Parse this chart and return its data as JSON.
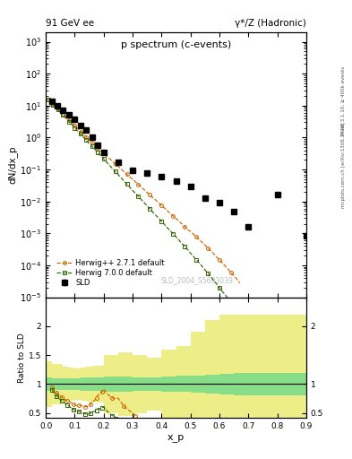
{
  "title_left": "91 GeV ee",
  "title_right": "γ*/Z (Hadronic)",
  "plot_title": "p spectrum (c-events)",
  "watermark": "SLD_2004_S5693039",
  "right_label": "Rivet 3.1.10, ≥ 400k events",
  "right_label2": "mcplots.cern.ch [arXiv:1306.3436]",
  "xlabel": "x_p",
  "ylabel_main": "dN/dx_p",
  "ylabel_ratio": "Ratio to SLD",
  "sld_x": [
    0.02,
    0.04,
    0.06,
    0.08,
    0.1,
    0.12,
    0.14,
    0.16,
    0.18,
    0.2,
    0.25,
    0.3,
    0.35,
    0.4,
    0.45,
    0.5,
    0.55,
    0.6,
    0.65,
    0.7,
    0.8,
    0.9
  ],
  "sld_y": [
    13.5,
    10.0,
    7.2,
    5.1,
    3.65,
    2.45,
    1.7,
    1.0,
    0.58,
    0.35,
    0.165,
    0.096,
    0.076,
    0.059,
    0.042,
    0.03,
    0.013,
    0.009,
    0.0048,
    0.0016,
    0.016,
    0.00085
  ],
  "sld_yerr": [
    1.4,
    1.0,
    0.7,
    0.48,
    0.33,
    0.23,
    0.17,
    0.1,
    0.062,
    0.036,
    0.017,
    0.01,
    0.008,
    0.006,
    0.005,
    0.003,
    0.0014,
    0.001,
    0.0005,
    0.0002,
    0.002,
    0.0001
  ],
  "hw271_x": [
    0.01,
    0.014,
    0.018,
    0.022,
    0.026,
    0.03,
    0.034,
    0.038,
    0.042,
    0.046,
    0.05,
    0.055,
    0.06,
    0.065,
    0.07,
    0.075,
    0.08,
    0.085,
    0.09,
    0.095,
    0.1,
    0.105,
    0.11,
    0.115,
    0.12,
    0.125,
    0.13,
    0.135,
    0.14,
    0.145,
    0.15,
    0.155,
    0.16,
    0.165,
    0.17,
    0.175,
    0.18,
    0.185,
    0.19,
    0.195,
    0.2,
    0.21,
    0.22,
    0.23,
    0.24,
    0.25,
    0.26,
    0.27,
    0.28,
    0.29,
    0.3,
    0.31,
    0.32,
    0.33,
    0.34,
    0.35,
    0.36,
    0.37,
    0.38,
    0.39,
    0.4,
    0.41,
    0.42,
    0.43,
    0.44,
    0.45,
    0.46,
    0.47,
    0.48,
    0.49,
    0.5,
    0.51,
    0.52,
    0.53,
    0.54,
    0.55,
    0.56,
    0.57,
    0.58,
    0.59,
    0.6,
    0.61,
    0.62,
    0.63,
    0.64,
    0.65,
    0.66,
    0.67
  ],
  "hw271_y": [
    16.0,
    14.8,
    13.5,
    12.4,
    11.4,
    10.4,
    9.55,
    8.75,
    8.05,
    7.4,
    6.8,
    6.1,
    5.5,
    4.95,
    4.45,
    4.0,
    3.6,
    3.25,
    2.92,
    2.62,
    2.35,
    2.12,
    1.92,
    1.73,
    1.56,
    1.41,
    1.27,
    1.15,
    1.04,
    0.94,
    0.85,
    0.77,
    0.7,
    0.635,
    0.575,
    0.52,
    0.47,
    0.43,
    0.39,
    0.355,
    0.32,
    0.265,
    0.22,
    0.182,
    0.151,
    0.125,
    0.104,
    0.086,
    0.071,
    0.059,
    0.049,
    0.041,
    0.034,
    0.028,
    0.023,
    0.019,
    0.016,
    0.013,
    0.011,
    0.009,
    0.0075,
    0.0062,
    0.0051,
    0.0042,
    0.0035,
    0.0029,
    0.0024,
    0.002,
    0.0016,
    0.0013,
    0.00115,
    0.00095,
    0.00078,
    0.00064,
    0.00052,
    0.00043,
    0.00035,
    0.00028,
    0.00023,
    0.00018,
    0.00015,
    0.00012,
    9.5e-05,
    7.5e-05,
    6e-05,
    4.7e-05,
    3.7e-05,
    2.8e-05
  ],
  "hw700_x": [
    0.01,
    0.014,
    0.018,
    0.022,
    0.026,
    0.03,
    0.034,
    0.038,
    0.042,
    0.046,
    0.05,
    0.055,
    0.06,
    0.065,
    0.07,
    0.075,
    0.08,
    0.085,
    0.09,
    0.095,
    0.1,
    0.105,
    0.11,
    0.115,
    0.12,
    0.125,
    0.13,
    0.135,
    0.14,
    0.145,
    0.15,
    0.155,
    0.16,
    0.165,
    0.17,
    0.175,
    0.18,
    0.185,
    0.19,
    0.195,
    0.2,
    0.21,
    0.22,
    0.23,
    0.24,
    0.25,
    0.26,
    0.27,
    0.28,
    0.29,
    0.3,
    0.31,
    0.32,
    0.33,
    0.34,
    0.35,
    0.36,
    0.37,
    0.38,
    0.39,
    0.4,
    0.41,
    0.42,
    0.43,
    0.44,
    0.45,
    0.46,
    0.47,
    0.48,
    0.49,
    0.5,
    0.51,
    0.52,
    0.53,
    0.54,
    0.55,
    0.56,
    0.57,
    0.58,
    0.59,
    0.6,
    0.61,
    0.62,
    0.63,
    0.64,
    0.65,
    0.66,
    0.67
  ],
  "hw700_y": [
    15.5,
    14.2,
    12.9,
    11.8,
    10.8,
    9.85,
    9.0,
    8.22,
    7.52,
    6.88,
    6.28,
    5.62,
    5.02,
    4.48,
    4.0,
    3.57,
    3.18,
    2.84,
    2.53,
    2.26,
    2.01,
    1.8,
    1.61,
    1.44,
    1.29,
    1.15,
    1.03,
    0.92,
    0.82,
    0.73,
    0.65,
    0.585,
    0.525,
    0.47,
    0.42,
    0.376,
    0.336,
    0.3,
    0.268,
    0.239,
    0.213,
    0.17,
    0.136,
    0.109,
    0.087,
    0.069,
    0.055,
    0.044,
    0.035,
    0.028,
    0.022,
    0.018,
    0.0143,
    0.0114,
    0.0091,
    0.0073,
    0.0058,
    0.0046,
    0.0037,
    0.003,
    0.0024,
    0.0019,
    0.0015,
    0.0012,
    0.00097,
    0.00077,
    0.00062,
    0.00049,
    0.00039,
    0.00031,
    0.00024,
    0.00019,
    0.00015,
    0.00012,
    9.3e-05,
    7.3e-05,
    5.7e-05,
    4.4e-05,
    3.4e-05,
    2.6e-05,
    2e-05,
    1.5e-05,
    1.2e-05,
    9e-06,
    6.8e-06,
    5.2e-06,
    3.9e-06,
    2.9e-06
  ],
  "bg_green": "#88dd88",
  "bg_yellow": "#eeee88",
  "ratio_green_lo": [
    0.88,
    0.9,
    0.9,
    0.9,
    0.9,
    0.9,
    0.89,
    0.89,
    0.88,
    0.88,
    0.87,
    0.87,
    0.88,
    0.88,
    0.87,
    0.86,
    0.85,
    0.84,
    0.82,
    0.8,
    0.8,
    0.8
  ],
  "ratio_green_hi": [
    1.12,
    1.1,
    1.1,
    1.1,
    1.1,
    1.1,
    1.11,
    1.11,
    1.12,
    1.12,
    1.13,
    1.13,
    1.12,
    1.12,
    1.13,
    1.14,
    1.15,
    1.16,
    1.18,
    1.2,
    1.2,
    1.2
  ],
  "ratio_yellow_lo": [
    0.6,
    0.65,
    0.65,
    0.7,
    0.72,
    0.73,
    0.72,
    0.7,
    0.68,
    0.68,
    0.5,
    0.45,
    0.5,
    0.55,
    0.4,
    0.35,
    0.1,
    -0.1,
    -0.2,
    -0.2,
    -0.2,
    -0.2
  ],
  "ratio_yellow_hi": [
    1.4,
    1.35,
    1.35,
    1.3,
    1.28,
    1.27,
    1.28,
    1.3,
    1.32,
    1.32,
    1.5,
    1.55,
    1.5,
    1.45,
    1.6,
    1.65,
    1.9,
    2.1,
    2.2,
    2.2,
    2.2,
    2.2
  ],
  "bin_edges": [
    0.0,
    0.02,
    0.04,
    0.06,
    0.08,
    0.1,
    0.12,
    0.14,
    0.16,
    0.18,
    0.2,
    0.25,
    0.3,
    0.35,
    0.4,
    0.45,
    0.5,
    0.55,
    0.6,
    0.65,
    0.7,
    0.8,
    0.9
  ],
  "xlim": [
    0.0,
    0.9
  ],
  "main_ylim_lo": 1e-05,
  "main_ylim_hi": 2000.0,
  "ratio_ylim": [
    0.42,
    2.5
  ]
}
